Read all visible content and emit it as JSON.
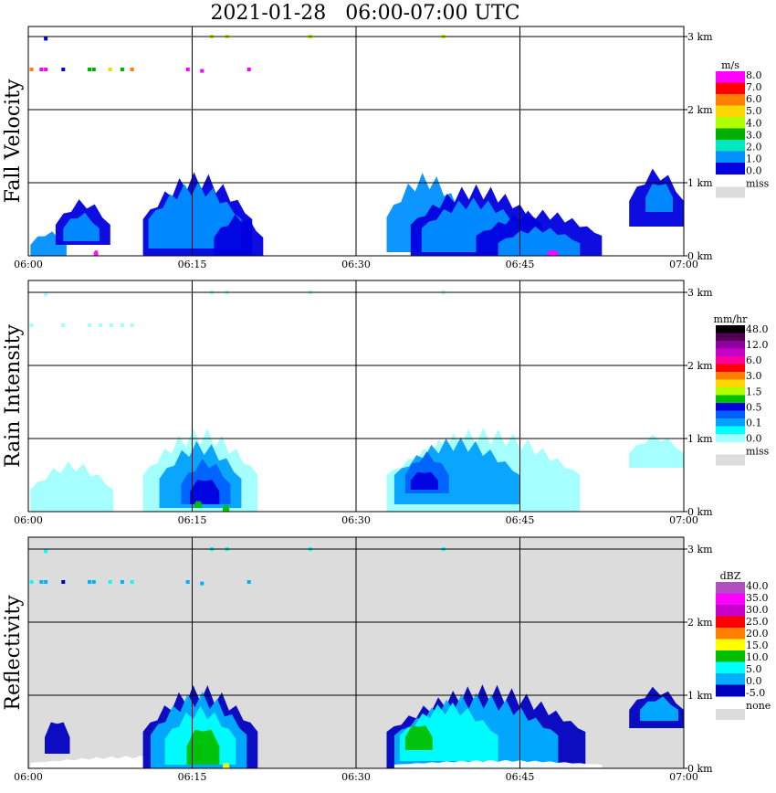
{
  "title": "2021-01-28   06:00-07:00 UTC",
  "x_ticks": [
    "06:00",
    "06:15",
    "06:30",
    "06:45",
    "07:00"
  ],
  "y_ticks": [
    "0 km",
    "1 km",
    "2 km",
    "3 km"
  ],
  "chart_data": [
    {
      "type": "heatmap",
      "ylabel": "Fall Velocity",
      "x_range": [
        "06:00",
        "07:00"
      ],
      "y_range_km": [
        0,
        3.0
      ],
      "background": "#ffffff",
      "legend": {
        "units": "m/s",
        "labels": [
          "8.0",
          "7.0",
          "6.0",
          "5.0",
          "4.0",
          "3.0",
          "2.0",
          "1.0",
          "0.0"
        ],
        "colors": [
          "#ff00ff",
          "#ff0000",
          "#ff7f00",
          "#ffd700",
          "#b0ff00",
          "#00b000",
          "#00e8c0",
          "#0090ff",
          "#0000e0"
        ],
        "missing_label": "miss",
        "missing_color": "#dcdcdc"
      },
      "cells": [
        {
          "x0": 0.2,
          "x1": 3.5,
          "y0": 0.0,
          "y1": 0.3,
          "color": "#0090ff"
        },
        {
          "x0": 2.5,
          "x1": 7.5,
          "y0": 0.15,
          "y1": 0.7,
          "color": "#0000e0"
        },
        {
          "x0": 3.2,
          "x1": 6.5,
          "y0": 0.2,
          "y1": 0.55,
          "color": "#0090ff"
        },
        {
          "x0": 10.5,
          "x1": 20.5,
          "y0": 0.0,
          "y1": 1.0,
          "color": "#0000e0"
        },
        {
          "x0": 11.0,
          "x1": 19.5,
          "y0": 0.1,
          "y1": 0.9,
          "color": "#0090ff"
        },
        {
          "x0": 17.0,
          "x1": 21.5,
          "y0": 0.0,
          "y1": 0.5,
          "color": "#0000e0"
        },
        {
          "x0": 32.8,
          "x1": 40.0,
          "y0": 0.05,
          "y1": 1.0,
          "color": "#0090ff"
        },
        {
          "x0": 35.0,
          "x1": 47.0,
          "y0": 0.0,
          "y1": 0.85,
          "color": "#0000e0"
        },
        {
          "x0": 36.0,
          "x1": 45.5,
          "y0": 0.05,
          "y1": 0.7,
          "color": "#0090ff"
        },
        {
          "x0": 41.0,
          "x1": 52.5,
          "y0": 0.0,
          "y1": 0.55,
          "color": "#0000e0"
        },
        {
          "x0": 43.0,
          "x1": 50.5,
          "y0": 0.0,
          "y1": 0.35,
          "color": "#0090ff"
        },
        {
          "x0": 55.0,
          "x1": 60.0,
          "y0": 0.4,
          "y1": 1.1,
          "color": "#0000e0"
        },
        {
          "x0": 56.5,
          "x1": 59.0,
          "y0": 0.6,
          "y1": 1.0,
          "color": "#0090ff"
        },
        {
          "x0": 6.0,
          "x1": 6.4,
          "y0": 0.0,
          "y1": 0.08,
          "color": "#ff00ff"
        },
        {
          "x0": 47.5,
          "x1": 48.5,
          "y0": 0.0,
          "y1": 0.08,
          "color": "#ff00ff"
        }
      ],
      "specks": [
        {
          "x": 0.3,
          "y": 2.55,
          "color": "#ff7f00"
        },
        {
          "x": 1.2,
          "y": 2.55,
          "color": "#ff00ff"
        },
        {
          "x": 1.6,
          "y": 2.55,
          "color": "#ff00ff"
        },
        {
          "x": 3.2,
          "y": 2.55,
          "color": "#0000e0"
        },
        {
          "x": 5.6,
          "y": 2.55,
          "color": "#00b000"
        },
        {
          "x": 6.0,
          "y": 2.55,
          "color": "#00b000"
        },
        {
          "x": 7.5,
          "y": 2.55,
          "color": "#ffd700"
        },
        {
          "x": 8.6,
          "y": 2.55,
          "color": "#00b000"
        },
        {
          "x": 9.5,
          "y": 2.55,
          "color": "#ff7f00"
        },
        {
          "x": 14.6,
          "y": 2.55,
          "color": "#ff00ff"
        },
        {
          "x": 15.9,
          "y": 2.53,
          "color": "#ff00ff"
        },
        {
          "x": 20.2,
          "y": 2.55,
          "color": "#ff00ff"
        },
        {
          "x": 1.6,
          "y": 2.97,
          "color": "#0000e0"
        },
        {
          "x": 16.8,
          "y": 3.0,
          "color": "#b0ff00"
        },
        {
          "x": 18.2,
          "y": 3.0,
          "color": "#b0ff00"
        },
        {
          "x": 25.8,
          "y": 3.0,
          "color": "#b0ff00"
        },
        {
          "x": 38.0,
          "y": 3.0,
          "color": "#b0ff00"
        }
      ]
    },
    {
      "type": "heatmap",
      "ylabel": "Rain Intensity",
      "x_range": [
        "06:00",
        "07:00"
      ],
      "y_range_km": [
        0,
        3.0
      ],
      "background": "#ffffff",
      "legend": {
        "units": "mm/hr",
        "labels": [
          "48.0",
          "12.0",
          "6.0",
          "3.0",
          "1.5",
          "0.5",
          "0.1",
          "0.0"
        ],
        "colors": [
          "#000000",
          "#500050",
          "#9000a0",
          "#c800c8",
          "#ff00a0",
          "#ff0000",
          "#ff7f00",
          "#ffd700",
          "#b0ff00",
          "#00c000",
          "#0000e0",
          "#0060ff",
          "#00a0ff",
          "#00ffff",
          "#a0ffff"
        ],
        "missing_label": "miss",
        "missing_color": "#dcdcdc"
      },
      "cells": [
        {
          "x0": 0.2,
          "x1": 7.8,
          "y0": 0.0,
          "y1": 0.6,
          "color": "#a0ffff"
        },
        {
          "x0": 10.5,
          "x1": 21.0,
          "y0": 0.0,
          "y1": 1.0,
          "color": "#a0ffff"
        },
        {
          "x0": 12.0,
          "x1": 19.5,
          "y0": 0.05,
          "y1": 0.85,
          "color": "#00a0ff"
        },
        {
          "x0": 14.0,
          "x1": 18.5,
          "y0": 0.1,
          "y1": 0.65,
          "color": "#0060ff"
        },
        {
          "x0": 14.8,
          "x1": 17.5,
          "y0": 0.1,
          "y1": 0.45,
          "color": "#0000e0"
        },
        {
          "x0": 15.2,
          "x1": 15.9,
          "y0": 0.05,
          "y1": 0.15,
          "color": "#00c000"
        },
        {
          "x0": 17.8,
          "x1": 18.4,
          "y0": 0.0,
          "y1": 0.1,
          "color": "#00c000"
        },
        {
          "x0": 32.8,
          "x1": 50.5,
          "y0": 0.0,
          "y1": 1.0,
          "color": "#a0ffff"
        },
        {
          "x0": 33.5,
          "x1": 45.0,
          "y0": 0.1,
          "y1": 0.9,
          "color": "#00a0ff"
        },
        {
          "x0": 34.5,
          "x1": 38.5,
          "y0": 0.25,
          "y1": 0.75,
          "color": "#0060ff"
        },
        {
          "x0": 35.0,
          "x1": 37.5,
          "y0": 0.3,
          "y1": 0.55,
          "color": "#0000e0"
        },
        {
          "x0": 55.0,
          "x1": 60.0,
          "y0": 0.6,
          "y1": 1.0,
          "color": "#a0ffff"
        }
      ],
      "specks": [
        {
          "x": 0.3,
          "y": 2.55,
          "color": "#a0ffff"
        },
        {
          "x": 3.2,
          "y": 2.55,
          "color": "#a0ffff"
        },
        {
          "x": 5.6,
          "y": 2.55,
          "color": "#a0ffff"
        },
        {
          "x": 6.6,
          "y": 2.55,
          "color": "#a0ffff"
        },
        {
          "x": 7.6,
          "y": 2.55,
          "color": "#a0ffff"
        },
        {
          "x": 8.6,
          "y": 2.55,
          "color": "#a0ffff"
        },
        {
          "x": 9.5,
          "y": 2.55,
          "color": "#a0ffff"
        },
        {
          "x": 1.6,
          "y": 2.97,
          "color": "#a0ffff"
        },
        {
          "x": 16.8,
          "y": 3.0,
          "color": "#a0ffff"
        },
        {
          "x": 18.2,
          "y": 3.0,
          "color": "#a0ffff"
        },
        {
          "x": 25.8,
          "y": 3.0,
          "color": "#a0ffff"
        },
        {
          "x": 38.0,
          "y": 3.0,
          "color": "#a0ffff"
        }
      ]
    },
    {
      "type": "heatmap",
      "ylabel": "Reflectivity",
      "x_range": [
        "06:00",
        "07:00"
      ],
      "y_range_km": [
        0,
        3.0
      ],
      "background": "#dcdcdc",
      "legend": {
        "units": "dBZ",
        "labels": [
          "40.0",
          "35.0",
          "30.0",
          "25.0",
          "20.0",
          "15.0",
          "10.0",
          "5.0",
          "0.0",
          "-5.0"
        ],
        "colors": [
          "#b050c0",
          "#ff00ff",
          "#c800c8",
          "#ff0000",
          "#ff7f00",
          "#ffff00",
          "#00c000",
          "#00ffff",
          "#00b0ff",
          "#0000c0"
        ],
        "missing_label": "none",
        "missing_color": "#dcdcdc"
      },
      "cells": [
        {
          "x0": 0.2,
          "x1": 21.0,
          "y0": 0.0,
          "y1": 0.15,
          "color": "#ffffff"
        },
        {
          "x0": 1.5,
          "x1": 3.8,
          "y0": 0.2,
          "y1": 0.65,
          "color": "#0000c0"
        },
        {
          "x0": 10.5,
          "x1": 21.0,
          "y0": 0.0,
          "y1": 1.0,
          "color": "#0000c0"
        },
        {
          "x0": 11.2,
          "x1": 20.0,
          "y0": 0.0,
          "y1": 0.92,
          "color": "#00b0ff"
        },
        {
          "x0": 12.5,
          "x1": 19.0,
          "y0": 0.05,
          "y1": 0.75,
          "color": "#00ffff"
        },
        {
          "x0": 14.5,
          "x1": 17.5,
          "y0": 0.05,
          "y1": 0.55,
          "color": "#00c000"
        },
        {
          "x0": 15.2,
          "x1": 16.0,
          "y0": 0.1,
          "y1": 0.35,
          "color": "#00c000"
        },
        {
          "x0": 17.8,
          "x1": 18.4,
          "y0": 0.0,
          "y1": 0.08,
          "color": "#ffff00"
        },
        {
          "x0": 32.8,
          "x1": 51.0,
          "y0": 0.0,
          "y1": 1.0,
          "color": "#0000c0"
        },
        {
          "x0": 33.5,
          "x1": 48.5,
          "y0": 0.0,
          "y1": 0.9,
          "color": "#00b0ff"
        },
        {
          "x0": 34.0,
          "x1": 43.0,
          "y0": 0.1,
          "y1": 0.8,
          "color": "#00ffff"
        },
        {
          "x0": 34.5,
          "x1": 37.0,
          "y0": 0.25,
          "y1": 0.6,
          "color": "#00c000"
        },
        {
          "x0": 33.5,
          "x1": 52.5,
          "y0": 0.0,
          "y1": 0.1,
          "color": "#ffffff"
        },
        {
          "x0": 55.0,
          "x1": 60.0,
          "y0": 0.55,
          "y1": 1.05,
          "color": "#0000c0"
        },
        {
          "x0": 56.0,
          "x1": 59.5,
          "y0": 0.65,
          "y1": 0.95,
          "color": "#00b0ff"
        }
      ],
      "specks": [
        {
          "x": 0.3,
          "y": 2.55,
          "color": "#00ffff"
        },
        {
          "x": 1.2,
          "y": 2.55,
          "color": "#00b0ff"
        },
        {
          "x": 1.6,
          "y": 2.55,
          "color": "#00b0ff"
        },
        {
          "x": 3.2,
          "y": 2.55,
          "color": "#0000c0"
        },
        {
          "x": 5.6,
          "y": 2.55,
          "color": "#00b0ff"
        },
        {
          "x": 6.0,
          "y": 2.55,
          "color": "#00b0ff"
        },
        {
          "x": 7.5,
          "y": 2.55,
          "color": "#00ffff"
        },
        {
          "x": 8.6,
          "y": 2.55,
          "color": "#00b0ff"
        },
        {
          "x": 9.5,
          "y": 2.55,
          "color": "#00ffff"
        },
        {
          "x": 14.6,
          "y": 2.55,
          "color": "#00b0ff"
        },
        {
          "x": 15.9,
          "y": 2.53,
          "color": "#00b0ff"
        },
        {
          "x": 20.2,
          "y": 2.55,
          "color": "#00b0ff"
        },
        {
          "x": 1.6,
          "y": 2.97,
          "color": "#00ffff"
        },
        {
          "x": 16.8,
          "y": 3.0,
          "color": "#00ffff"
        },
        {
          "x": 18.2,
          "y": 3.0,
          "color": "#00ffff"
        },
        {
          "x": 25.8,
          "y": 3.0,
          "color": "#00ffff"
        },
        {
          "x": 38.0,
          "y": 3.0,
          "color": "#00ffff"
        }
      ]
    }
  ]
}
